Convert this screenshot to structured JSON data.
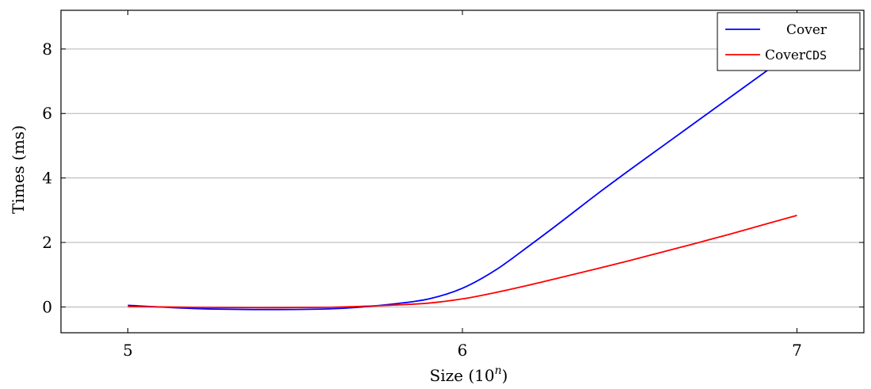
{
  "chart_data": {
    "type": "line",
    "xlabel": "Size (10",
    "xlabel_sup": "n",
    "xlabel_close": ")",
    "ylabel": "Times (ms)",
    "xlim": [
      4.8,
      7.2
    ],
    "ylim": [
      -0.8,
      9.2
    ],
    "xticks": [
      5,
      6,
      7
    ],
    "yticks": [
      0,
      2,
      4,
      6,
      8
    ],
    "grid": "horizontal",
    "legend_position": "top-right",
    "series": [
      {
        "name": "Cover",
        "color": "#0000ff",
        "x": [
          5.0,
          5.2,
          5.4,
          5.6,
          5.7,
          5.8,
          5.9,
          6.0,
          6.1,
          6.2,
          6.3,
          6.4,
          6.5,
          6.6,
          6.7,
          6.8,
          6.9,
          7.0
        ],
        "y": [
          0.05,
          -0.05,
          -0.08,
          -0.06,
          0.0,
          0.1,
          0.25,
          0.58,
          1.15,
          1.9,
          2.68,
          3.48,
          4.25,
          5.0,
          5.75,
          6.5,
          7.25,
          8.0
        ]
      },
      {
        "name": "Cover",
        "name_code": "CDS",
        "color": "#ff0000",
        "x": [
          5.0,
          5.2,
          5.4,
          5.6,
          5.7,
          5.8,
          5.9,
          6.0,
          6.1,
          6.2,
          6.3,
          6.4,
          6.5,
          6.6,
          6.7,
          6.8,
          6.9,
          7.0
        ],
        "y": [
          0.01,
          -0.01,
          -0.02,
          -0.01,
          0.02,
          0.06,
          0.12,
          0.25,
          0.45,
          0.68,
          0.93,
          1.18,
          1.44,
          1.71,
          1.98,
          2.26,
          2.55,
          2.84
        ]
      }
    ]
  }
}
